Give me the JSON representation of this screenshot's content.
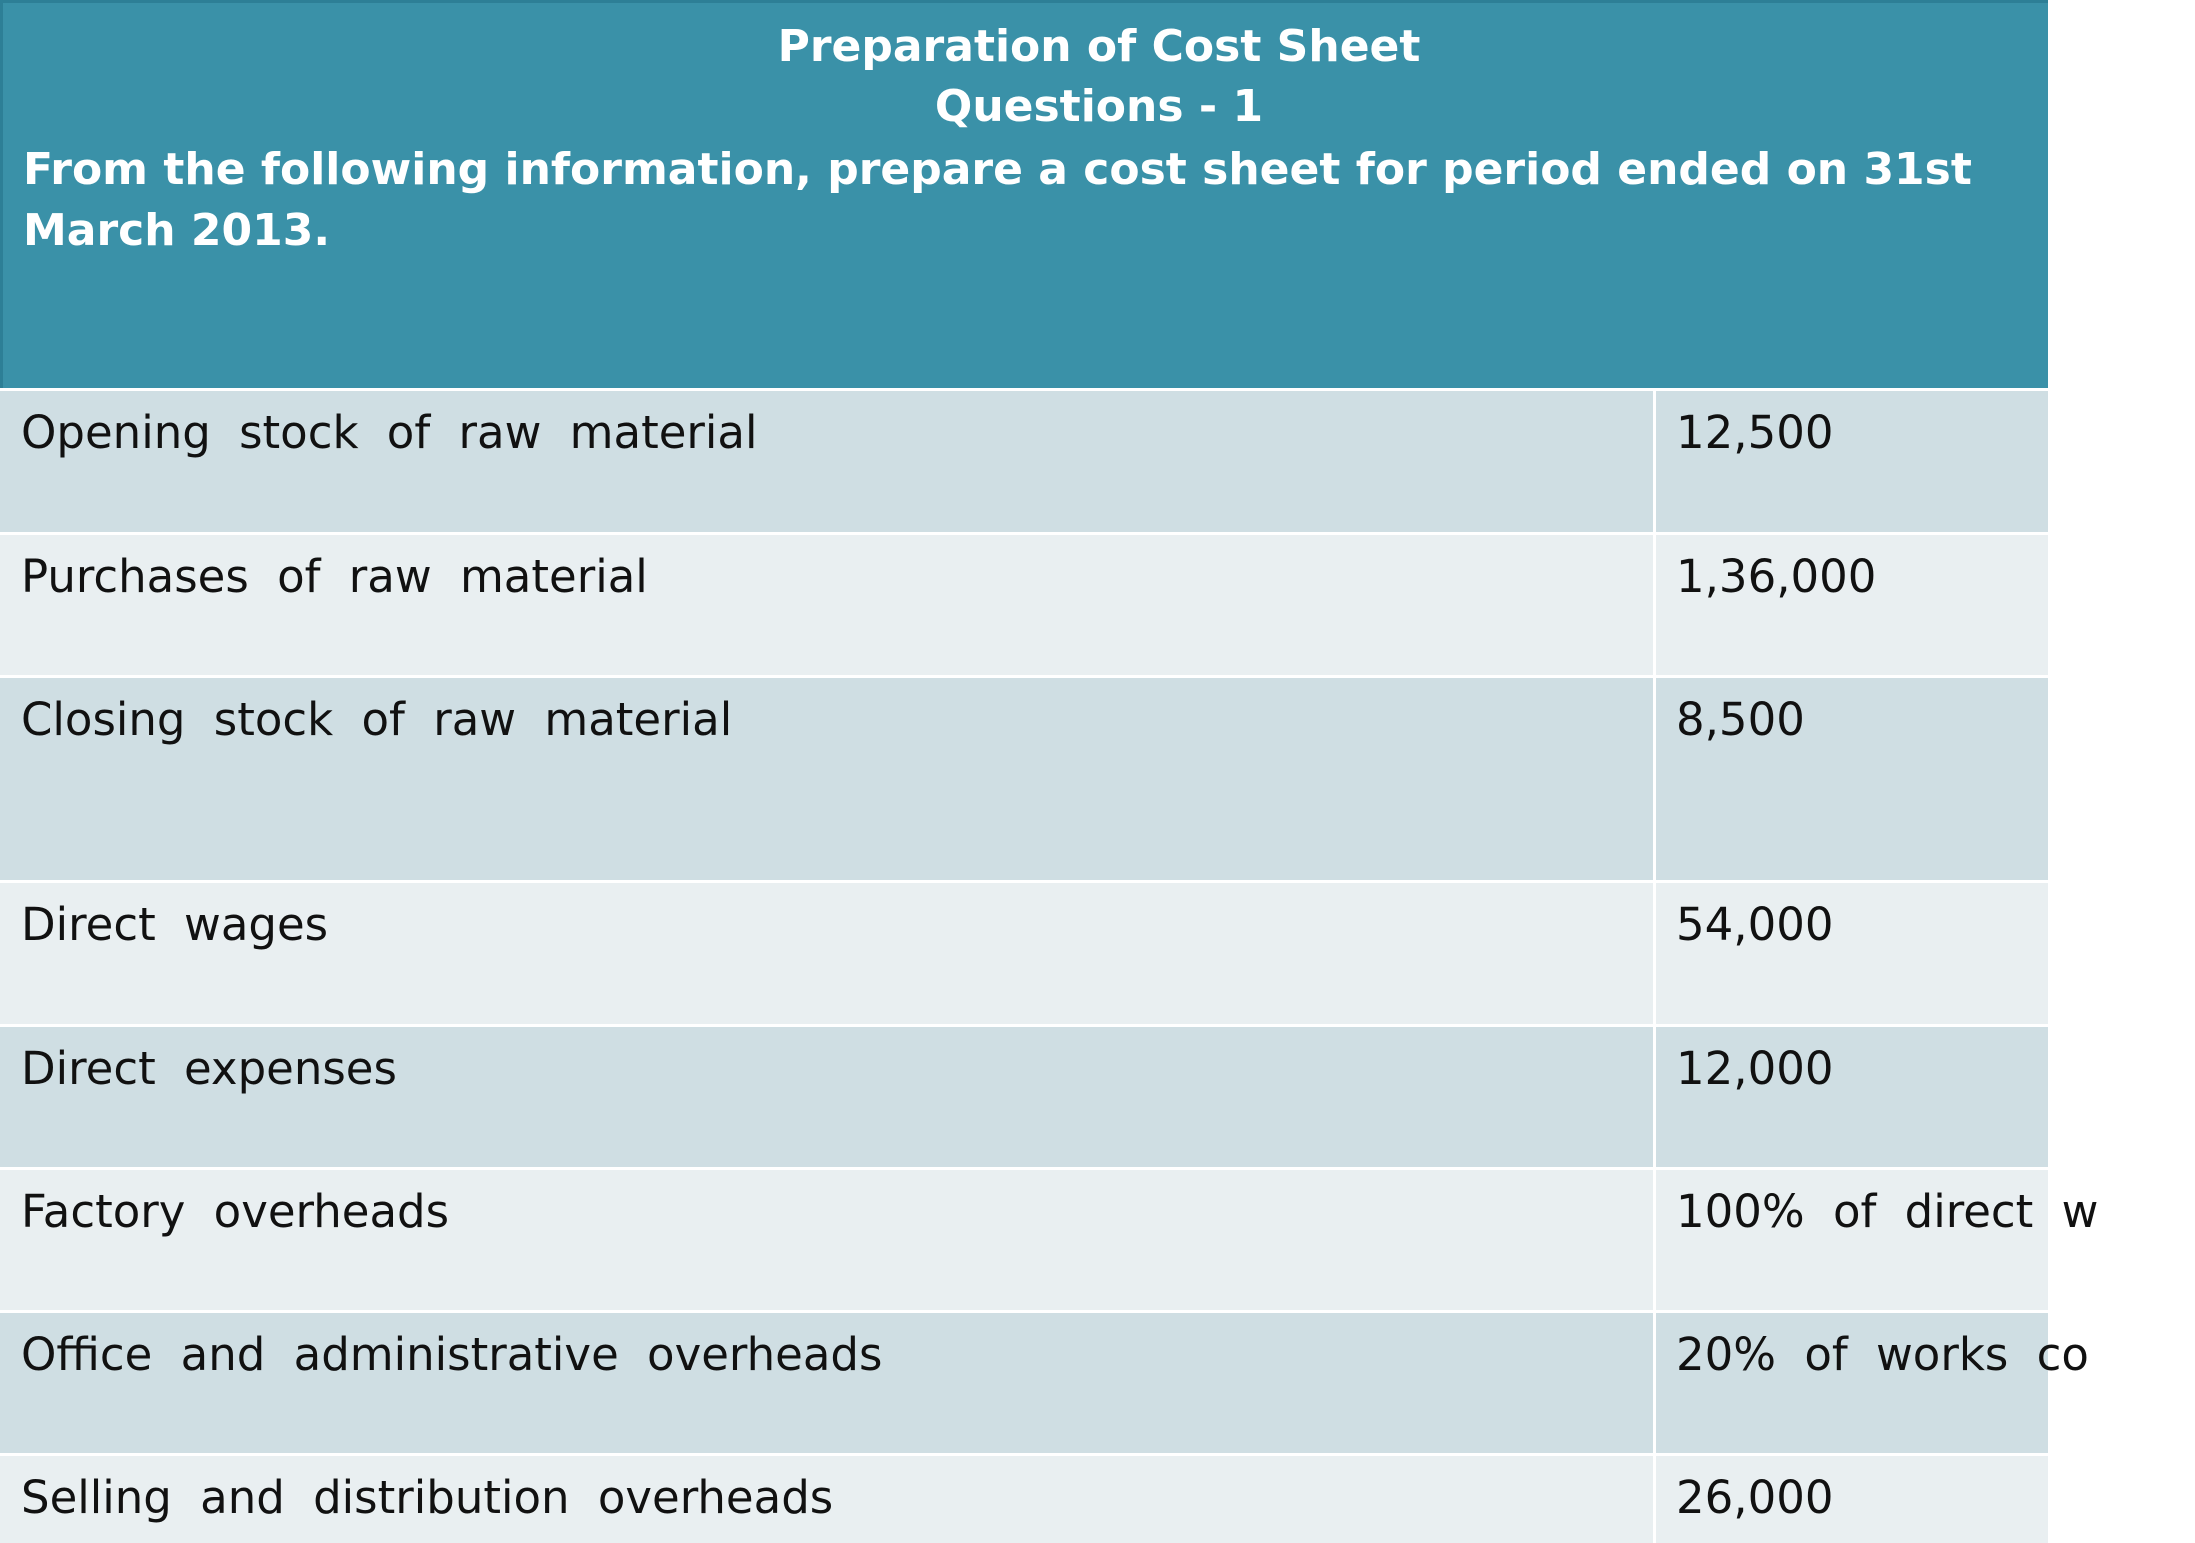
{
  "header": {
    "title": "Preparation of Cost Sheet",
    "subtitle": "Questions - 1",
    "question": "From the following information, prepare a cost sheet for period ended on 31st March 2013."
  },
  "rows": [
    {
      "label": "Opening stock of raw material",
      "value": "12,500"
    },
    {
      "label": "Purchases of raw material",
      "value": "1,36,000"
    },
    {
      "label": "Closing stock of raw material",
      "value": "8,500"
    },
    {
      "label": "Direct wages",
      "value": "54,000"
    },
    {
      "label": "Direct expenses",
      "value": "12,000"
    },
    {
      "label": "Factory overheads",
      "value": "100% of direct w"
    },
    {
      "label": "Office and administrative overheads",
      "value": "20% of works co"
    },
    {
      "label": "Selling and distribution overheads",
      "value": "26,000"
    }
  ]
}
